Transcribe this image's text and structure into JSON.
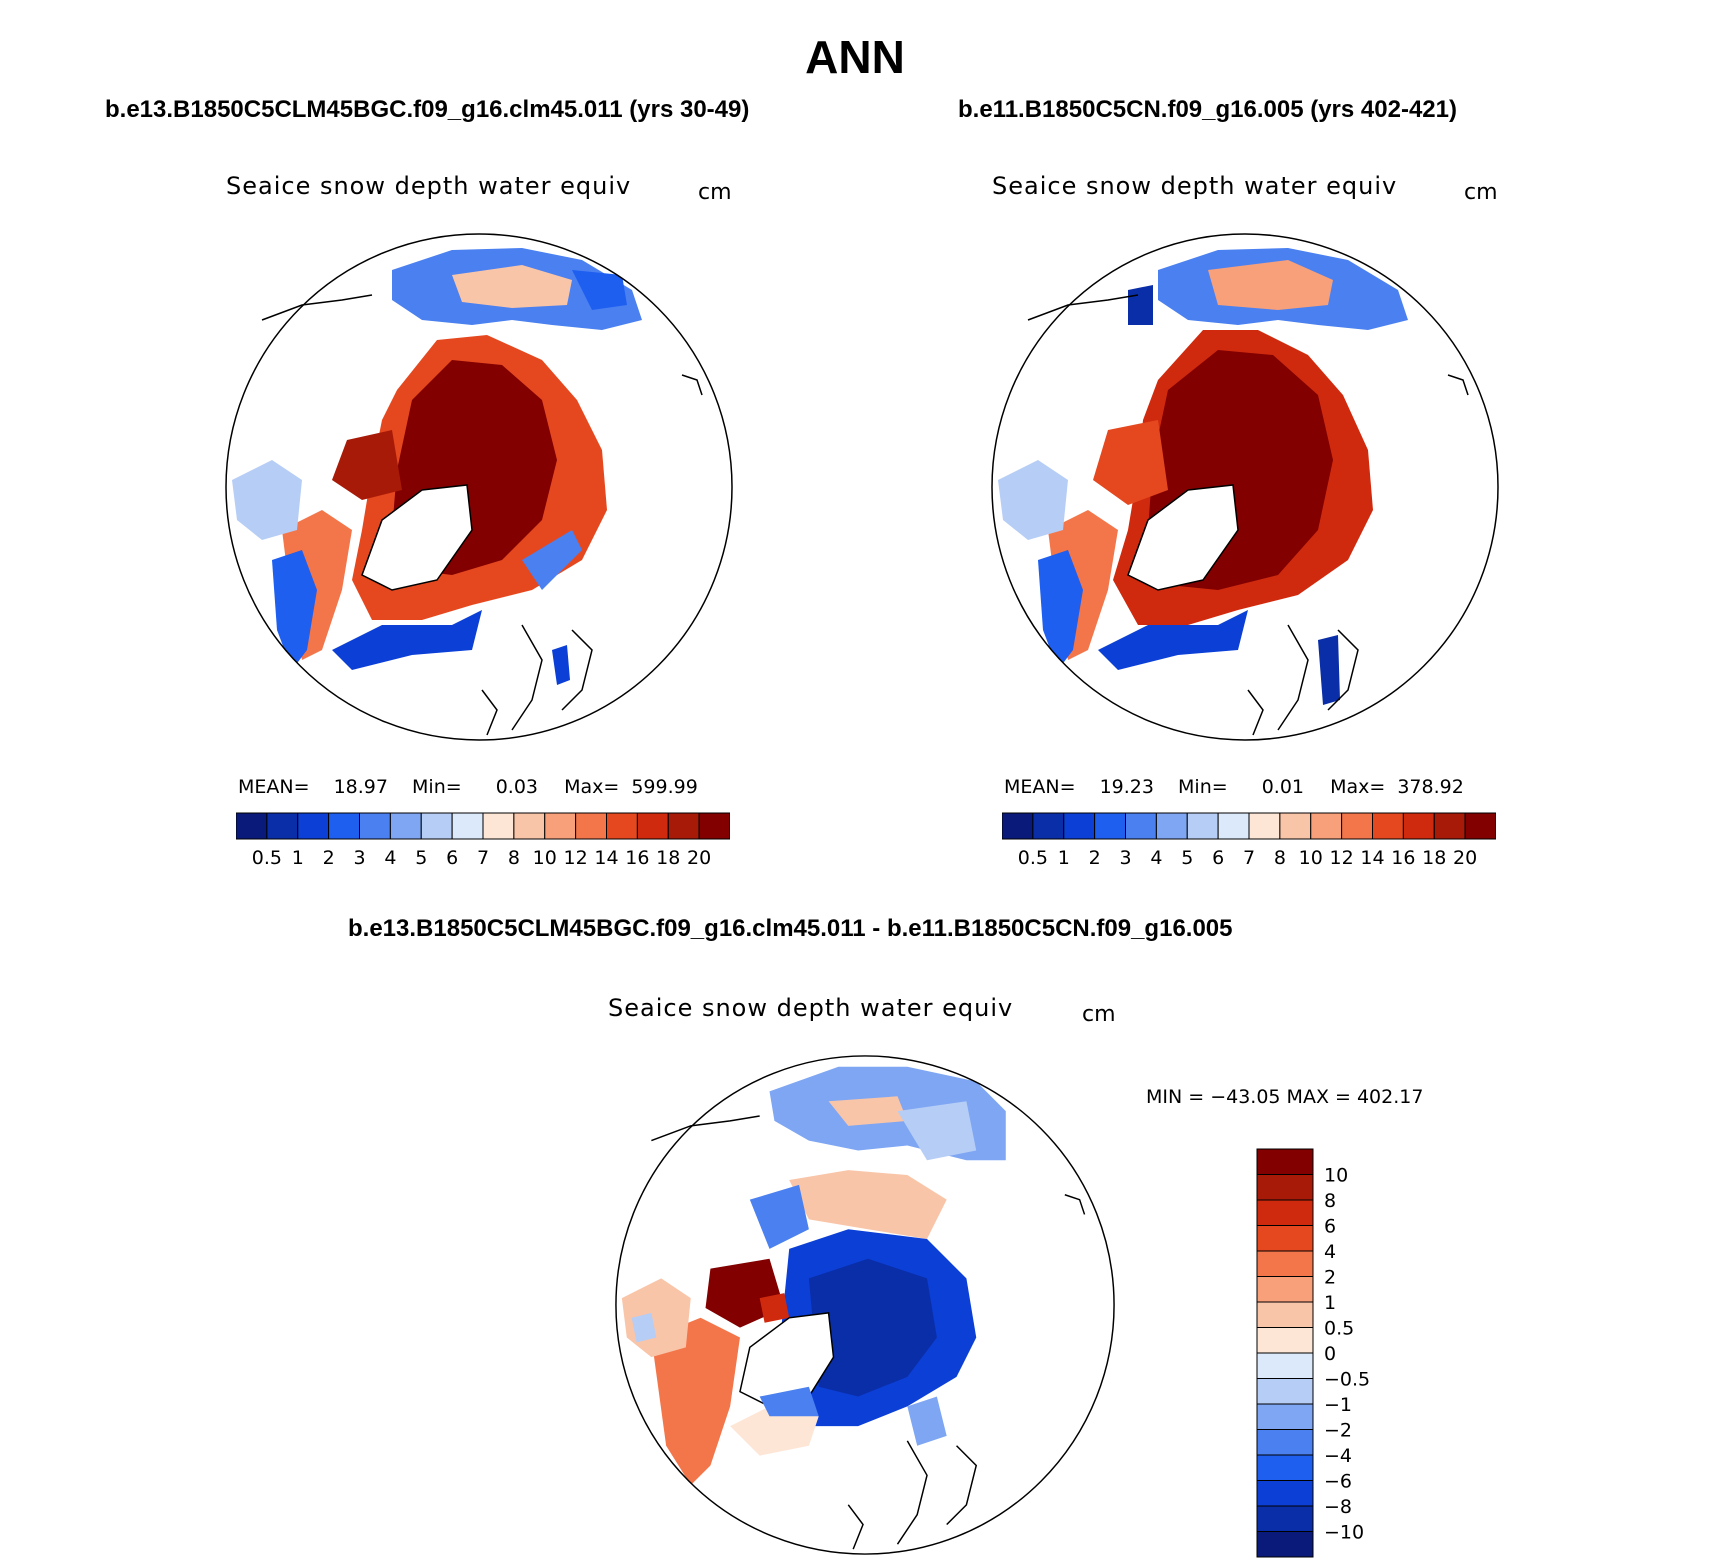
{
  "main_title": "ANN",
  "colors": {
    "level_colors": [
      "#0a1a7a",
      "#0a2ea8",
      "#0b3fd6",
      "#1f5ff0",
      "#4a80f0",
      "#7ea6f3",
      "#b6cdf6",
      "#dce9fb",
      "#fde6d6",
      "#f9c5a8",
      "#f7a07a",
      "#f3764b",
      "#e5481f",
      "#d02a0e",
      "#a81a08",
      "#820000"
    ],
    "diff_colors": [
      "#0a1a7a",
      "#0a2ea8",
      "#0b3fd6",
      "#1f5ff0",
      "#4a80f0",
      "#7ea6f3",
      "#b6cdf6",
      "#dce9fb",
      "#fde6d6",
      "#f9c5a8",
      "#f7a07a",
      "#f3764b",
      "#e5481f",
      "#d02a0e",
      "#a81a08",
      "#820000"
    ]
  },
  "panels": [
    {
      "case_label": "b.e13.B1850C5CLM45BGC.f09_g16.clm45.011 (yrs 30-49)",
      "plot_title": "Seaice snow depth water equiv",
      "units": "cm",
      "stats": {
        "mean_label": "MEAN=",
        "mean": "18.97",
        "min_label": "Min=",
        "min": "0.03",
        "max_label": "Max=",
        "max": "599.99"
      },
      "colorbar_ticks": [
        "0.5",
        "1",
        "2",
        "3",
        "4",
        "5",
        "6",
        "7",
        "8",
        "10",
        "12",
        "14",
        "16",
        "18",
        "20"
      ]
    },
    {
      "case_label": "b.e11.B1850C5CN.f09_g16.005 (yrs 402-421)",
      "plot_title": "Seaice snow depth water equiv",
      "units": "cm",
      "stats": {
        "mean_label": "MEAN=",
        "mean": "19.23",
        "min_label": "Min=",
        "min": "0.01",
        "max_label": "Max=",
        "max": "378.92"
      },
      "colorbar_ticks": [
        "0.5",
        "1",
        "2",
        "3",
        "4",
        "5",
        "6",
        "7",
        "8",
        "10",
        "12",
        "14",
        "16",
        "18",
        "20"
      ]
    }
  ],
  "difference": {
    "case_label": "b.e13.B1850C5CLM45BGC.f09_g16.clm45.011 - b.e11.B1850C5CN.f09_g16.005",
    "plot_title": "Seaice snow depth water equiv",
    "units": "cm",
    "minmax_text": "MIN = −43.05 MAX = 402.17",
    "colorbar_ticks": [
      "10",
      "8",
      "6",
      "4",
      "2",
      "1",
      "0.5",
      "0",
      "−0.5",
      "−1",
      "−2",
      "−4",
      "−6",
      "−8",
      "−10"
    ]
  }
}
